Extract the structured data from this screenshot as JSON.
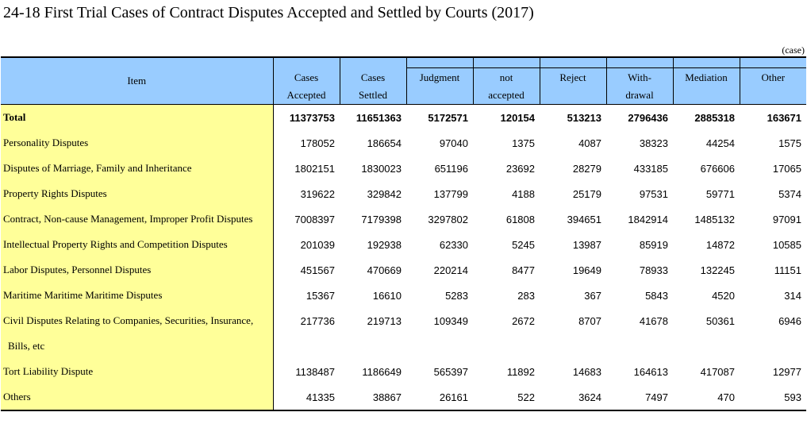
{
  "title": "24-18  First Trial Cases of Contract Disputes Accepted and Settled by Courts (2017)",
  "unit": "(case)",
  "headers": [
    {
      "line1": "Item",
      "line2": ""
    },
    {
      "line1": "Cases",
      "line2": "Accepted"
    },
    {
      "line1": "Cases",
      "line2": "Settled"
    },
    {
      "line1": "Judgment",
      "line2": ""
    },
    {
      "line1": "not",
      "line2": "accepted"
    },
    {
      "line1": "Reject",
      "line2": ""
    },
    {
      "line1": "With-",
      "line2": "drawal"
    },
    {
      "line1": "Mediation",
      "line2": ""
    },
    {
      "line1": "Other",
      "line2": ""
    }
  ],
  "rows": [
    {
      "item": "Total",
      "values": [
        "11373753",
        "11651363",
        "5172571",
        "120154",
        "513213",
        "2796436",
        "2885318",
        "163671"
      ]
    },
    {
      "item": "Personality Disputes",
      "values": [
        "178052",
        "186654",
        "97040",
        "1375",
        "4087",
        "38323",
        "44254",
        "1575"
      ]
    },
    {
      "item": "Disputes of Marriage, Family and Inheritance",
      "values": [
        "1802151",
        "1830023",
        "651196",
        "23692",
        "28279",
        "433185",
        "676606",
        "17065"
      ]
    },
    {
      "item": "Property Rights Disputes",
      "values": [
        "319622",
        "329842",
        "137799",
        "4188",
        "25179",
        "97531",
        "59771",
        "5374"
      ]
    },
    {
      "item": "Contract, Non-cause Management, Improper Profit Disputes",
      "values": [
        "7008397",
        "7179398",
        "3297802",
        "61808",
        "394651",
        "1842914",
        "1485132",
        "97091"
      ]
    },
    {
      "item": "Intellectual Property Rights and Competition Disputes",
      "values": [
        "201039",
        "192938",
        "62330",
        "5245",
        "13987",
        "85919",
        "14872",
        "10585"
      ]
    },
    {
      "item": "Labor Disputes, Personnel Disputes",
      "values": [
        "451567",
        "470669",
        "220214",
        "8477",
        "19649",
        "78933",
        "132245",
        "11151"
      ]
    },
    {
      "item": "Maritime Maritime Maritime Disputes",
      "values": [
        "15367",
        "16610",
        "5283",
        "283",
        "367",
        "5843",
        "4520",
        "314"
      ]
    },
    {
      "item": "Civil Disputes Relating to Companies, Securities, Insurance,",
      "item_cont": "Bills, etc",
      "values": [
        "217736",
        "219713",
        "109349",
        "2672",
        "8707",
        "41678",
        "50361",
        "6946"
      ]
    },
    {
      "item": "Tort Liability Dispute",
      "values": [
        "1138487",
        "1186649",
        "565397",
        "11892",
        "14683",
        "164613",
        "417087",
        "12977"
      ]
    },
    {
      "item": "Others",
      "values": [
        "41335",
        "38867",
        "26161",
        "522",
        "3624",
        "7497",
        "470",
        "593"
      ]
    }
  ]
}
